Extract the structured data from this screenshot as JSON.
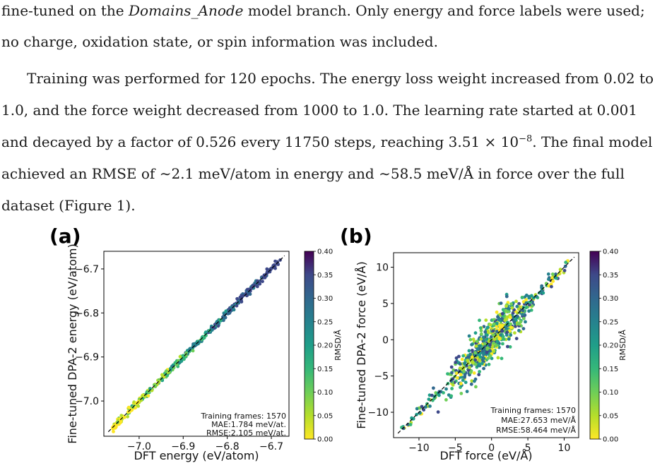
{
  "text": {
    "line1": "fine-tuned on the Domains_Anode model branch. Only energy and force labels were used;",
    "line2": "no charge, oxidation state, or spin information was included.",
    "line3": "Training was performed for 120 epochs. The energy loss weight increased from 0.02 to",
    "line4": "1.0, and the force weight decreased from 1000 to 1.0. The learning rate started at 0.001",
    "line5": "and decayed by a factor of 0.526 every 11750 steps, reaching 3.51 × 10⁻⁸. The final model",
    "line6": "achieved an RMSE of ∼2.1 meV/atom in energy and ∼58.5 meV/Å in force over the full",
    "line7": "dataset (Figure 1)."
  },
  "chart_data": [
    {
      "type": "scatter",
      "panel_label": "(a)",
      "xlabel": "DFT energy (eV/atom)",
      "ylabel": "Fine-tuned DPA-2 energy (eV/atom)",
      "xlim": [
        -7.08,
        -6.66
      ],
      "ylim": [
        -7.08,
        -6.66
      ],
      "x_ticks": [
        -7.0,
        -6.9,
        -6.8,
        -6.7
      ],
      "x_tick_labels": [
        "−7.0",
        "−6.9",
        "−6.8",
        "−6.7"
      ],
      "y_ticks": [
        -7.0,
        -6.9,
        -6.8,
        -6.7
      ],
      "y_tick_labels": [
        "−7.0",
        "−6.9",
        "−6.8",
        "−6.7"
      ],
      "diagonal": true,
      "annotation": [
        "Training frames: 1570",
        "MAE:1.784 meV/at.",
        "RMSE:2.105 meV/at."
      ],
      "colorbar": {
        "label": "RMSD/Å",
        "range": [
          0,
          0.4
        ],
        "ticks": [
          "0.00",
          "0.05",
          "0.10",
          "0.15",
          "0.20",
          "0.25",
          "0.30",
          "0.35",
          "0.40"
        ]
      },
      "points_summary": {
        "n": 1570,
        "x_range": [
          -7.06,
          -6.68
        ],
        "spread": 0.004,
        "color_trend": "low RMSD (yellow) at low energy, high RMSD (purple) at high energy"
      }
    },
    {
      "type": "scatter",
      "panel_label": "(b)",
      "xlabel": "DFT force (eV/Å)",
      "ylabel": "Fine-tuned DPA-2 force (eV/Å)",
      "xlim": [
        -13.5,
        12
      ],
      "ylim": [
        -13.5,
        12
      ],
      "x_ticks": [
        -10,
        -5,
        0,
        5,
        10
      ],
      "x_tick_labels": [
        "−10",
        "−5",
        "0",
        "5",
        "10"
      ],
      "y_ticks": [
        -10,
        -5,
        0,
        5,
        10
      ],
      "y_tick_labels": [
        "−10",
        "−5",
        "0",
        "5",
        "10"
      ],
      "diagonal": true,
      "annotation": [
        "Training frames: 1570",
        "MAE:27.653 meV/Å",
        "RMSE:58.464 meV/Å"
      ],
      "colorbar": {
        "label": "RMSD/Å",
        "range": [
          0,
          0.4
        ],
        "ticks": [
          "0.00",
          "0.05",
          "0.10",
          "0.15",
          "0.20",
          "0.25",
          "0.30",
          "0.35",
          "0.40"
        ]
      },
      "points_summary": {
        "n": 1570,
        "x_range": [
          -12.5,
          10.5
        ],
        "spread": 0.9,
        "color_trend": "mixed; dense cluster around origin"
      }
    }
  ]
}
